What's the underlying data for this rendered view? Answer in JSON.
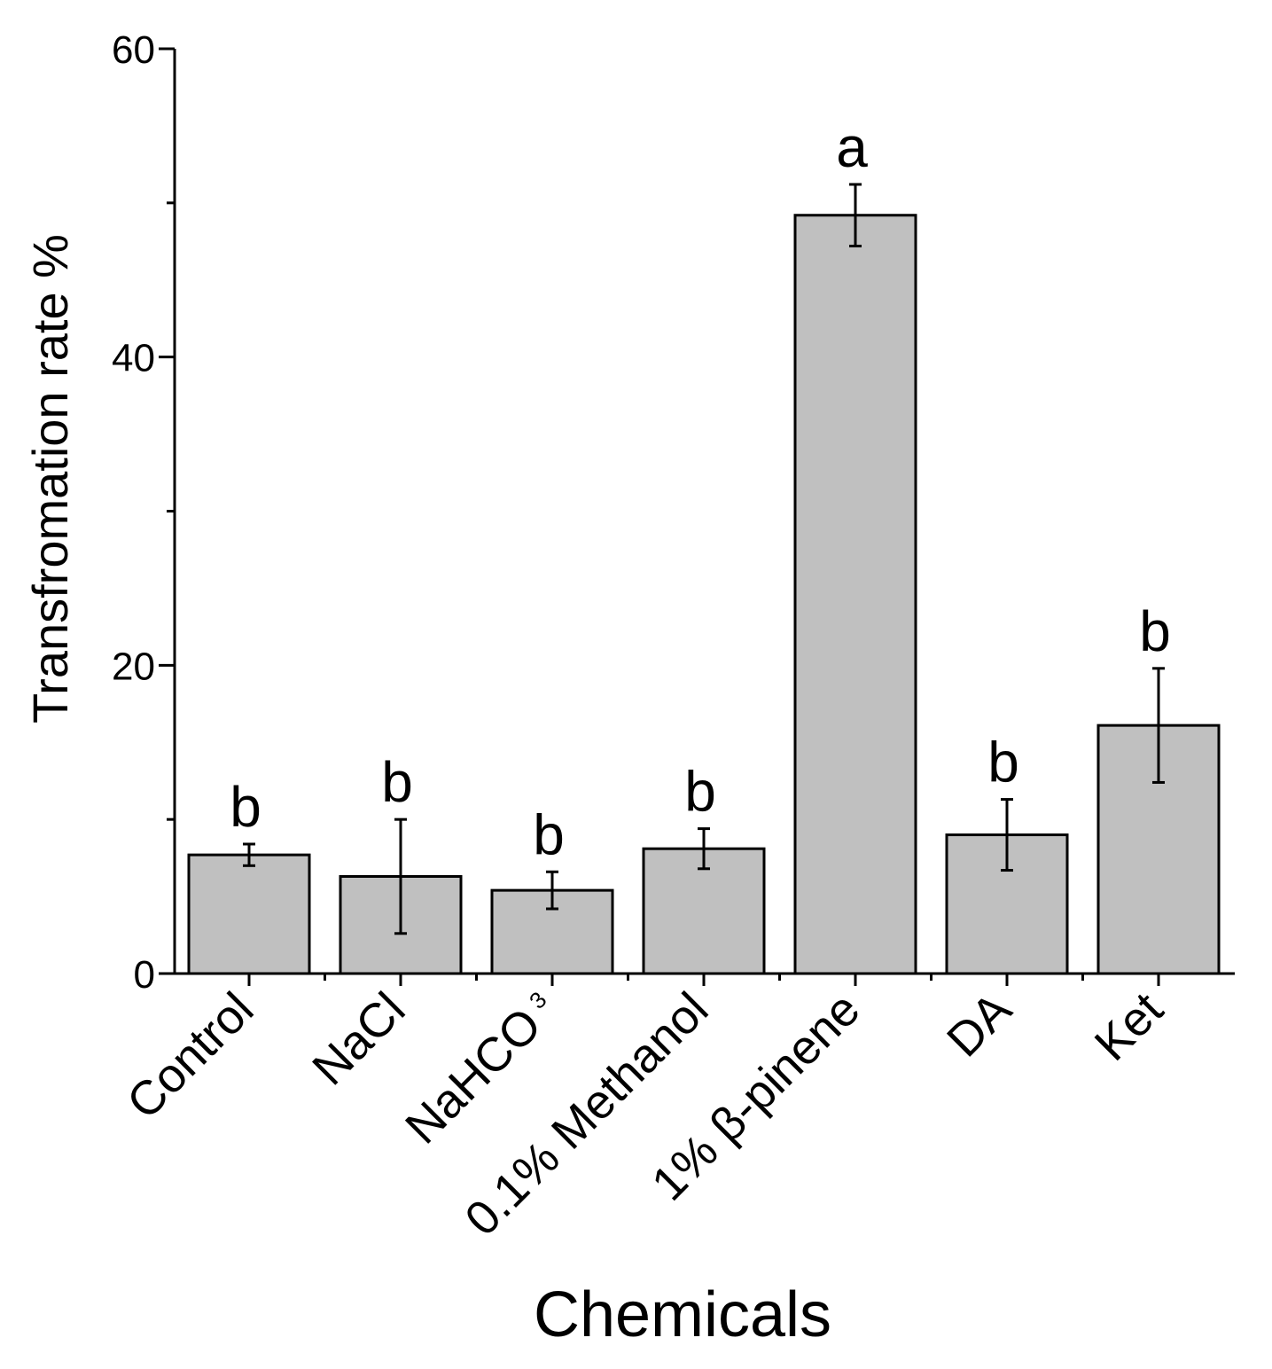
{
  "chart_data": {
    "type": "bar",
    "title": "",
    "xlabel": "Chemicals",
    "ylabel": "Transfromation rate %",
    "ylim": [
      0,
      60
    ],
    "yticks": [
      0,
      20,
      40,
      60
    ],
    "categories": [
      {
        "label": "Control",
        "subscript": ""
      },
      {
        "label": "NaCl",
        "subscript": ""
      },
      {
        "label": "NaHCO",
        "subscript": "3"
      },
      {
        "label": "0.1% Methanol",
        "subscript": ""
      },
      {
        "label": "1% β-pinene",
        "subscript": ""
      },
      {
        "label": "DA",
        "subscript": ""
      },
      {
        "label": "Ket",
        "subscript": ""
      }
    ],
    "values": [
      7.7,
      6.3,
      5.4,
      8.1,
      49.2,
      9.0,
      16.1
    ],
    "error": [
      0.7,
      3.7,
      1.2,
      1.3,
      2.0,
      2.3,
      3.7
    ],
    "significance": [
      "b",
      "b",
      "b",
      "b",
      "a",
      "b",
      "b"
    ],
    "bar_color": "#c0c0c0",
    "edge_color": "#000000",
    "grid": false,
    "legend": "none"
  }
}
